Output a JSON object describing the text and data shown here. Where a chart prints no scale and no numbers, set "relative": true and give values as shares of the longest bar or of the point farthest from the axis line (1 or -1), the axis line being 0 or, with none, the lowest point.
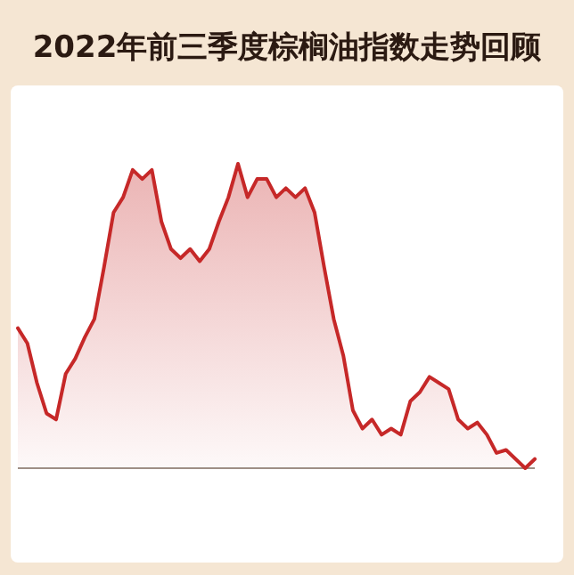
{
  "chart_data": {
    "type": "area",
    "title": "2022年前三季度棕榈油指数走势回顾",
    "relative": true,
    "color": "#c62828",
    "categories": [
      null,
      null,
      null,
      null,
      null,
      null,
      null,
      null,
      null,
      null,
      null,
      null,
      null,
      null,
      null,
      null,
      null,
      null,
      null,
      null,
      null,
      null,
      null,
      null,
      null,
      null,
      null,
      null,
      null,
      null,
      null,
      null,
      null,
      null,
      null,
      null,
      null,
      null,
      null,
      null,
      null,
      null,
      null,
      null,
      null,
      null,
      null,
      null,
      null,
      null,
      null,
      null,
      null,
      null,
      null
    ],
    "values": [
      0.46,
      0.41,
      0.28,
      0.18,
      0.16,
      0.31,
      0.36,
      0.43,
      0.49,
      0.66,
      0.84,
      0.89,
      0.98,
      0.95,
      0.98,
      0.81,
      0.72,
      0.69,
      0.72,
      0.68,
      0.72,
      0.81,
      0.89,
      1,
      0.89,
      0.95,
      0.95,
      0.89,
      0.92,
      0.89,
      0.92,
      0.84,
      0.66,
      0.49,
      0.37,
      0.19,
      0.13,
      0.16,
      0.11,
      0.13,
      0.11,
      0.22,
      0.25,
      0.3,
      0.28,
      0.26,
      0.16,
      0.13,
      0.15,
      0.11,
      0.05,
      0.06,
      0.03,
      0,
      0.03
    ]
  }
}
